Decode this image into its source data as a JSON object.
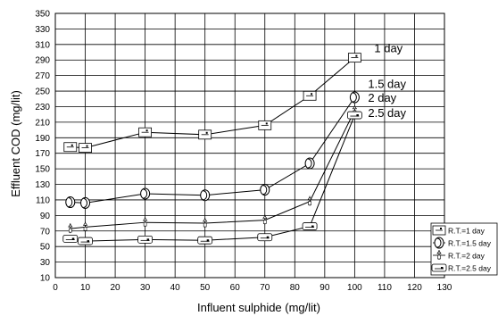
{
  "chart_data": {
    "type": "line",
    "title": "",
    "xlabel": "Influent sulphide (mg/lit)",
    "ylabel": "Effluent COD (mg/lit)",
    "xlim": [
      0,
      130
    ],
    "ylim": [
      10,
      350
    ],
    "x_ticks": [
      0,
      10,
      20,
      30,
      40,
      50,
      60,
      70,
      80,
      90,
      100,
      110,
      120,
      130
    ],
    "y_ticks": [
      10,
      30,
      50,
      70,
      90,
      110,
      130,
      150,
      170,
      190,
      210,
      230,
      250,
      270,
      290,
      310,
      330,
      350
    ],
    "x_tick_labels": [
      "0",
      "10",
      "20",
      "30",
      "40",
      "50",
      "60",
      "70",
      "80",
      "90",
      "100",
      "110",
      "120",
      "130"
    ],
    "y_tick_labels": [
      "10",
      "30",
      "50",
      "70",
      "90",
      "110",
      "130",
      "150",
      "170",
      "190",
      "210",
      "230",
      "250",
      "270",
      "290",
      "310",
      "330",
      "350"
    ],
    "grid": true,
    "legend_position": "right",
    "x": [
      5,
      10,
      30,
      50,
      70,
      85,
      100
    ],
    "series": [
      {
        "name": "R.T.=1 day",
        "values": [
          178,
          177,
          197,
          194,
          206,
          244,
          293
        ],
        "marker": "square"
      },
      {
        "name": "R.T.=1.5 day",
        "values": [
          107,
          106,
          118,
          116,
          123,
          157,
          242
        ],
        "marker": "circle"
      },
      {
        "name": "R.T.=2 day",
        "values": [
          73,
          75,
          81,
          80,
          84,
          108,
          225
        ],
        "marker": "triangle"
      },
      {
        "name": "R.T.=2.5 day",
        "values": [
          60,
          57,
          59,
          58,
          62,
          76,
          219
        ],
        "marker": "square-small"
      }
    ],
    "annotations": [
      "1 day",
      "1.5 day",
      "2 day",
      "2.5 day"
    ]
  }
}
